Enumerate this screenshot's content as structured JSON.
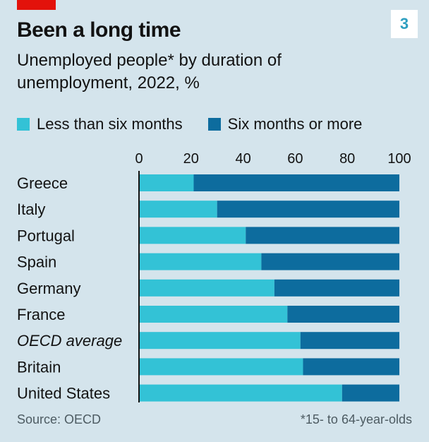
{
  "badge": "3",
  "title": "Been a long time",
  "subtitle": "Unemployed people* by duration of unemployment, 2022, %",
  "source": "Source: OECD",
  "footnote": "*15- to 64-year-olds",
  "colors": {
    "short": "#33c2d6",
    "long": "#0d6c9e",
    "background": "#d4e4ec",
    "brand_red": "#e3120b"
  },
  "chart_data": {
    "type": "bar",
    "orientation": "horizontal",
    "stacked": true,
    "title": "Been a long time",
    "subtitle": "Unemployed people* by duration of unemployment, 2022, %",
    "xlim": [
      0,
      100
    ],
    "ticks": [
      0,
      20,
      40,
      60,
      80,
      100
    ],
    "tick_position": "top",
    "legend_position": "top-left",
    "categories": [
      "Greece",
      "Italy",
      "Portugal",
      "Spain",
      "Germany",
      "France",
      "OECD average",
      "Britain",
      "United States"
    ],
    "italic_categories": [
      "OECD average"
    ],
    "series": [
      {
        "name": "Less than six months",
        "color": "#33c2d6",
        "values": [
          21,
          30,
          41,
          47,
          52,
          57,
          62,
          63,
          78
        ]
      },
      {
        "name": "Six months or more",
        "color": "#0d6c9e",
        "values": [
          79,
          70,
          59,
          53,
          48,
          43,
          38,
          37,
          22
        ]
      }
    ]
  }
}
